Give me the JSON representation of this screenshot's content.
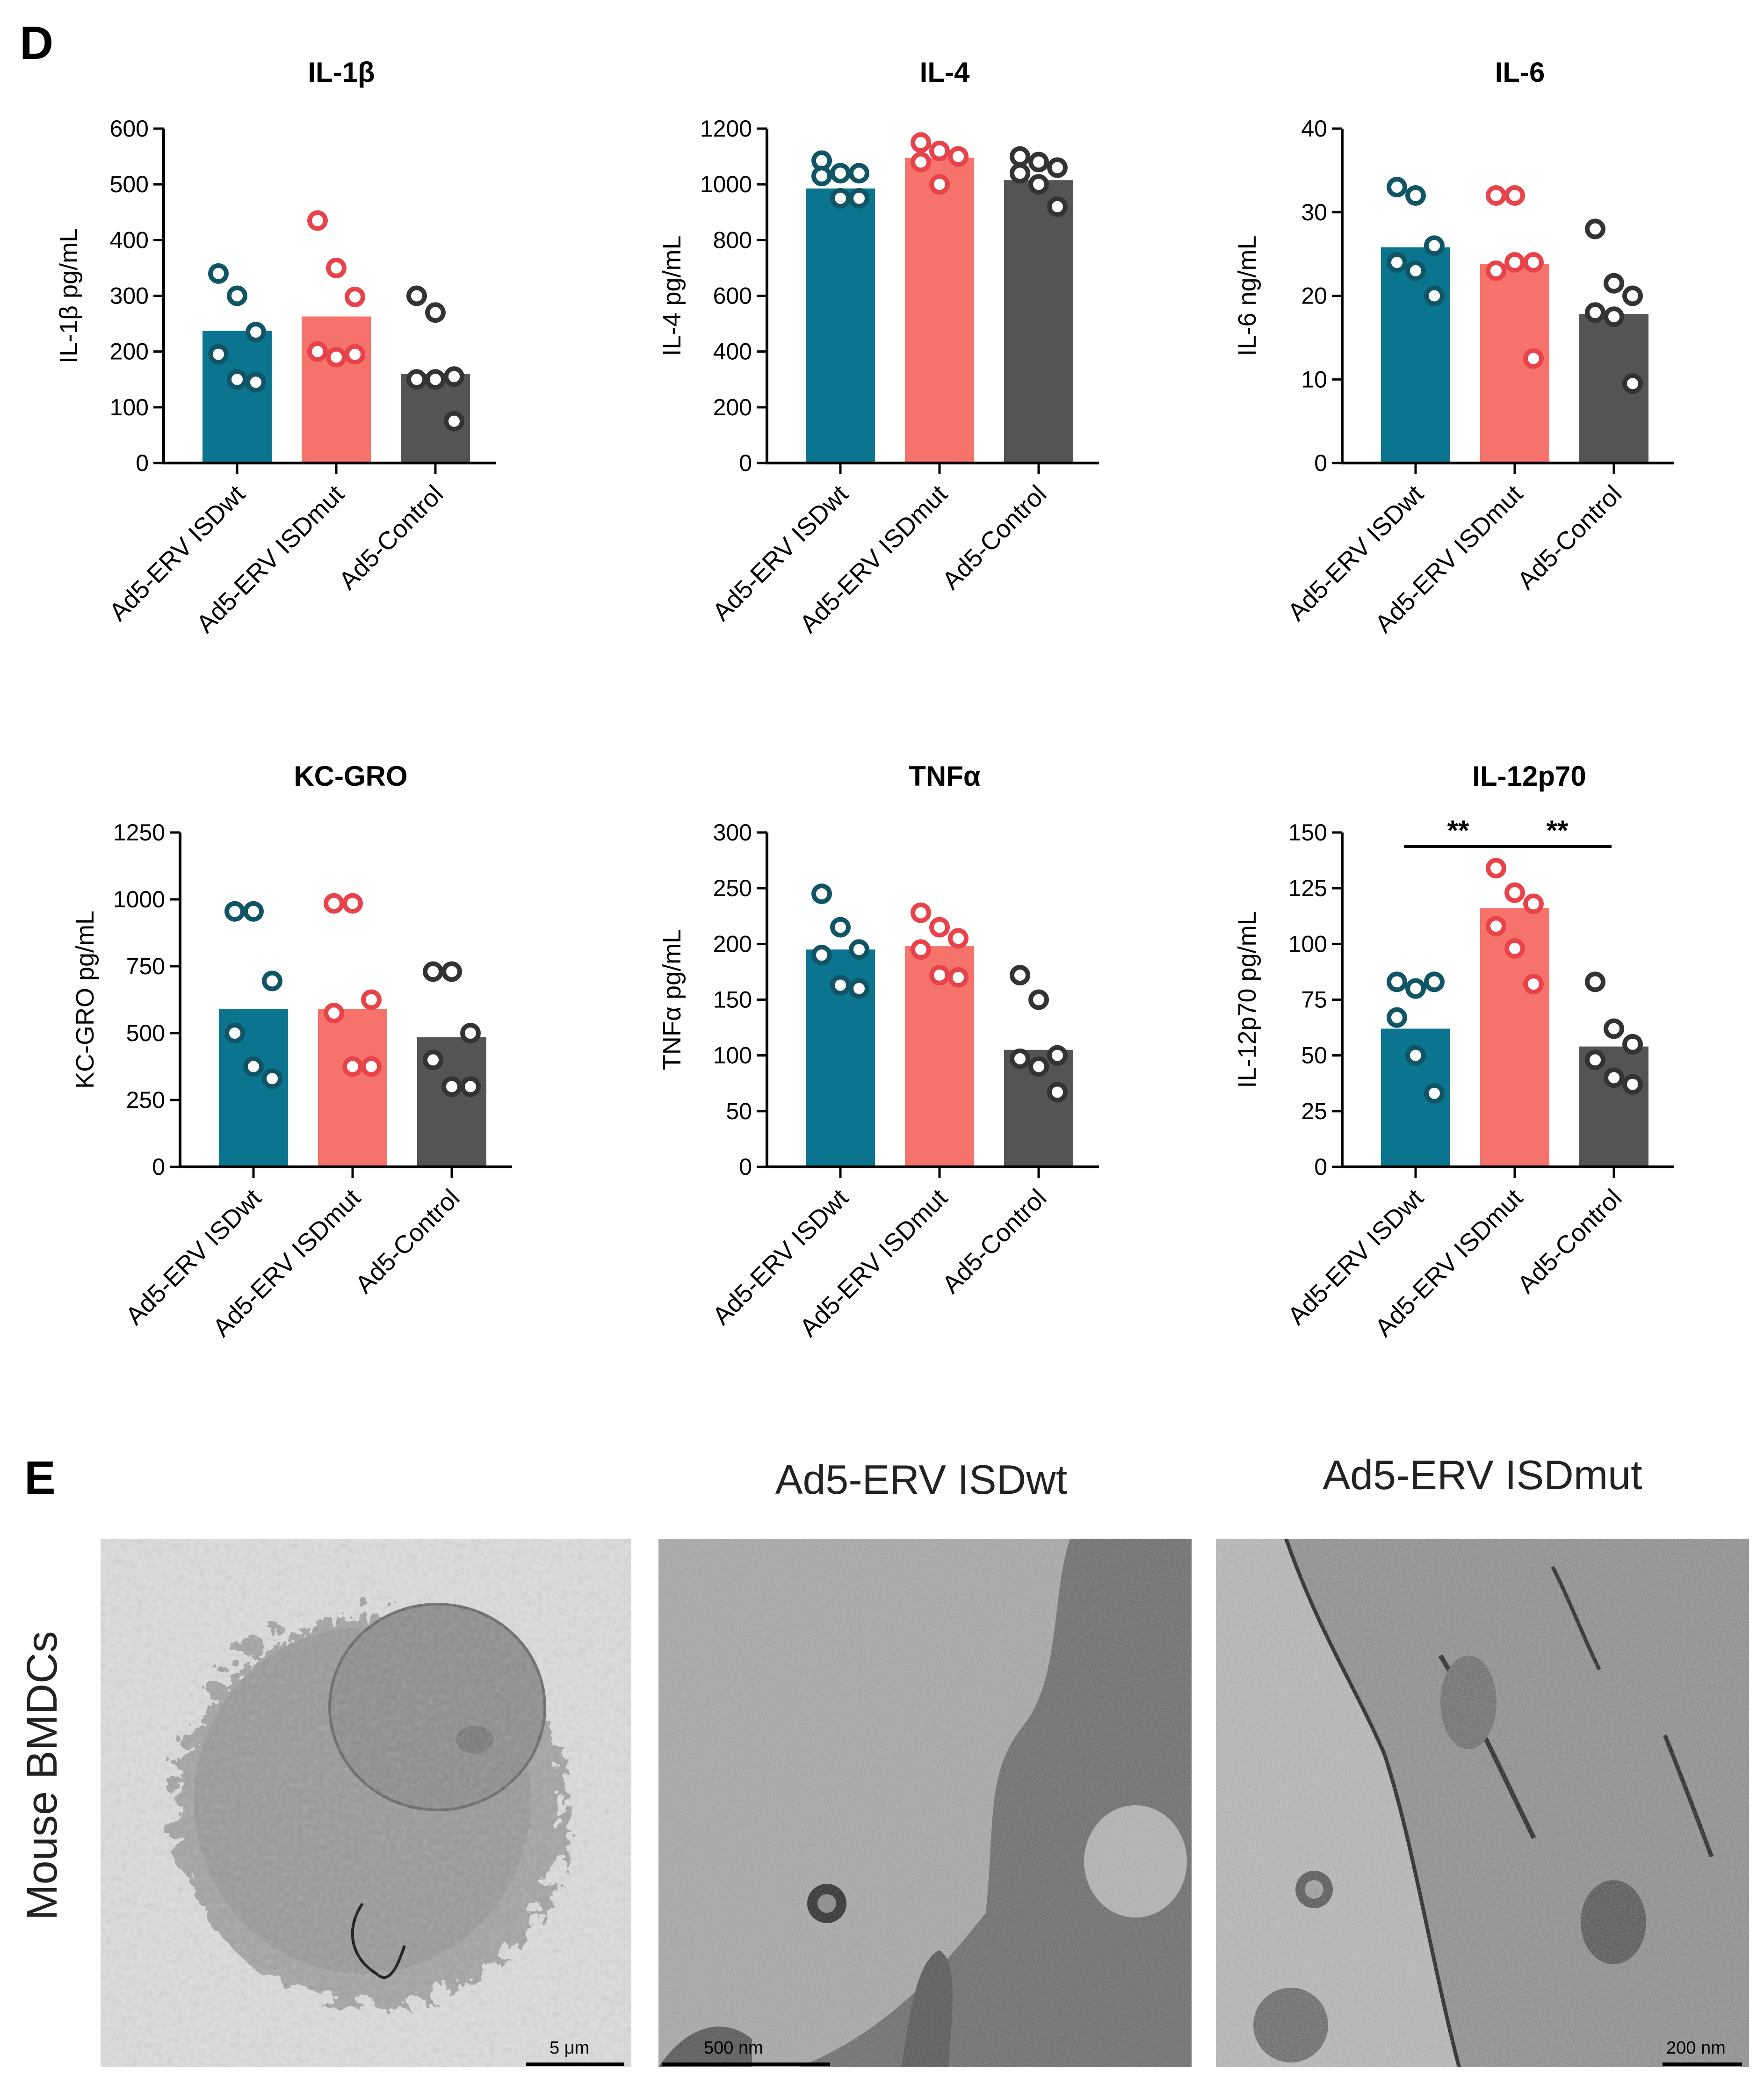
{
  "panel_d_label": "D",
  "panel_e_label": "E",
  "colors": {
    "isdwt": "#0b7590",
    "isdmut": "#f5736a",
    "control": "#545454",
    "isdwt_point": "#0f5566",
    "isdmut_point": "#e8434a",
    "control_point": "#333333"
  },
  "chart_data": [
    {
      "type": "bar",
      "title": "IL-1β",
      "ylabel": "IL-1β pg/mL",
      "categories": [
        "Ad5-ERV ISDwt",
        "Ad5-ERV ISDmut",
        "Ad5-Control"
      ],
      "values": [
        237,
        263,
        160
      ],
      "points": [
        [
          340,
          300,
          235,
          195,
          150,
          145
        ],
        [
          435,
          350,
          298,
          200,
          190,
          195
        ],
        [
          300,
          270,
          155,
          150,
          150,
          75
        ]
      ],
      "ylim": [
        0,
        600
      ],
      "yticks": [
        0,
        100,
        200,
        300,
        400,
        500,
        600
      ],
      "significance": []
    },
    {
      "type": "bar",
      "title": "IL-4",
      "ylabel": "IL-4 pg/mL",
      "categories": [
        "Ad5-ERV ISDwt",
        "Ad5-ERV ISDmut",
        "Ad5-Control"
      ],
      "values": [
        985,
        1095,
        1015
      ],
      "points": [
        [
          1085,
          1040,
          1040,
          1030,
          950,
          950
        ],
        [
          1150,
          1120,
          1100,
          1080,
          1000,
          1100
        ],
        [
          1100,
          1080,
          1060,
          1040,
          1000,
          920
        ]
      ],
      "ylim": [
        0,
        1200
      ],
      "yticks": [
        0,
        200,
        400,
        600,
        800,
        1000,
        1200
      ],
      "significance": []
    },
    {
      "type": "bar",
      "title": "IL-6",
      "ylabel": "IL-6 ng/mL",
      "categories": [
        "Ad5-ERV ISDwt",
        "Ad5-ERV ISDmut",
        "Ad5-Control"
      ],
      "values": [
        25.8,
        23.8,
        17.8
      ],
      "points": [
        [
          33,
          32,
          26,
          24,
          23,
          20
        ],
        [
          32,
          32,
          24,
          23,
          24,
          12.5
        ],
        [
          28,
          21.5,
          20,
          18,
          17.5,
          9.5
        ]
      ],
      "ylim": [
        0,
        40
      ],
      "yticks": [
        0,
        10,
        20,
        30,
        40
      ],
      "significance": []
    },
    {
      "type": "bar",
      "title": "KC-GRO",
      "ylabel": "KC-GRO pg/mL",
      "categories": [
        "Ad5-ERV ISDwt",
        "Ad5-ERV ISDmut",
        "Ad5-Control"
      ],
      "values": [
        590,
        590,
        485
      ],
      "points": [
        [
          955,
          955,
          695,
          500,
          375,
          330
        ],
        [
          985,
          985,
          625,
          575,
          375,
          375
        ],
        [
          730,
          730,
          500,
          400,
          300,
          300
        ]
      ],
      "ylim": [
        0,
        1250
      ],
      "yticks": [
        0,
        250,
        500,
        750,
        1000,
        1250
      ],
      "significance": []
    },
    {
      "type": "bar",
      "title": "TNFα",
      "ylabel": "TNFα pg/mL",
      "categories": [
        "Ad5-ERV ISDwt",
        "Ad5-ERV ISDmut",
        "Ad5-Control"
      ],
      "values": [
        195,
        198,
        105
      ],
      "points": [
        [
          245,
          215,
          195,
          190,
          163,
          160
        ],
        [
          228,
          215,
          205,
          195,
          172,
          170
        ],
        [
          172,
          150,
          100,
          97,
          90,
          67
        ]
      ],
      "ylim": [
        0,
        300
      ],
      "yticks": [
        0,
        50,
        100,
        150,
        200,
        250,
        300
      ],
      "significance": []
    },
    {
      "type": "bar",
      "title": "IL-12p70",
      "ylabel": "IL-12p70 pg/mL",
      "categories": [
        "Ad5-ERV ISDwt",
        "Ad5-ERV ISDmut",
        "Ad5-Control"
      ],
      "values": [
        62,
        116,
        54
      ],
      "points": [
        [
          83,
          80,
          83,
          67,
          50,
          33
        ],
        [
          134,
          123,
          118,
          108,
          98,
          82
        ],
        [
          83,
          62,
          55,
          48,
          40,
          37
        ]
      ],
      "ylim": [
        0,
        150
      ],
      "yticks": [
        0,
        25,
        50,
        75,
        100,
        125,
        150
      ],
      "significance": [
        {
          "from": 0,
          "to": 1,
          "label": "**"
        },
        {
          "from": 1,
          "to": 2,
          "label": "**"
        }
      ]
    }
  ],
  "em": {
    "row_label": "Mouse BMDCs",
    "column_titles": [
      "Ad5-ERV ISDwt",
      "Ad5-ERV ISDmut"
    ],
    "scale_bars": [
      "5 μm",
      "500 nm",
      "200 nm"
    ]
  }
}
